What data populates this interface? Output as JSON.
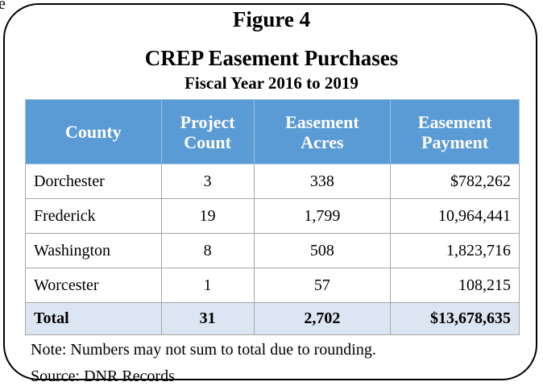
{
  "corner_text": "e",
  "header": {
    "figure": "Figure 4",
    "title": "CREP Easement Purchases",
    "subtitle": "Fiscal Year 2016 to 2019"
  },
  "table": {
    "columns": [
      "County",
      "Project Count",
      "Easement Acres",
      "Easement Payment"
    ],
    "rows": [
      [
        "Dorchester",
        "3",
        "338",
        "$782,262"
      ],
      [
        "Frederick",
        "19",
        "1,799",
        "10,964,441"
      ],
      [
        "Washington",
        "8",
        "508",
        "1,823,716"
      ],
      [
        "Worcester",
        "1",
        "57",
        "108,215"
      ]
    ],
    "total": [
      "Total",
      "31",
      "2,702",
      "$13,678,635"
    ]
  },
  "notes": [
    "Note: Numbers may not sum to total due to rounding.",
    "Source: DNR Records"
  ]
}
